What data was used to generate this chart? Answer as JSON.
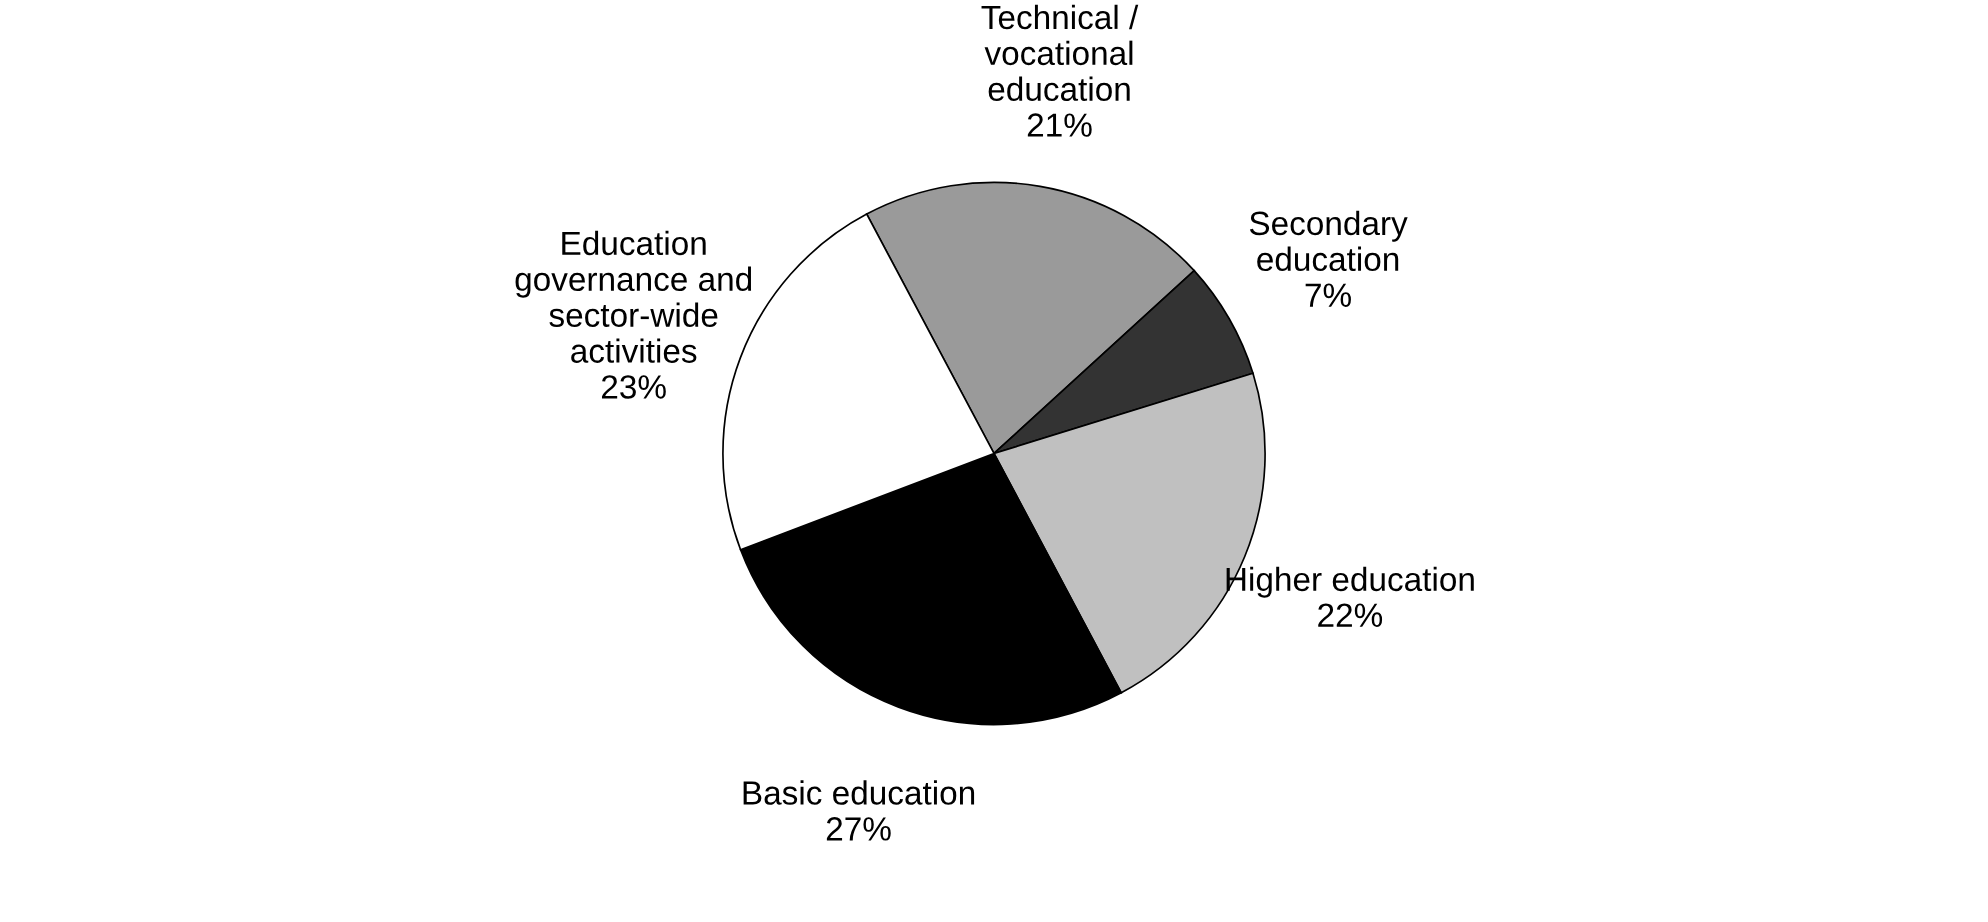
{
  "chart_data": {
    "type": "pie",
    "categories": [
      "Technical /\nvocational\neducation",
      "Secondary\neducation",
      "Higher education",
      "Basic education",
      "Education\ngovernance and\nsector-wide\nactivities"
    ],
    "values": [
      21,
      7,
      22,
      27,
      23
    ],
    "value_labels": [
      "21%",
      "7%",
      "22%",
      "27%",
      "23%"
    ],
    "colors": [
      "#9a9a9a",
      "#333333",
      "#c0c0c0",
      "#000000",
      "#ffffff"
    ]
  }
}
